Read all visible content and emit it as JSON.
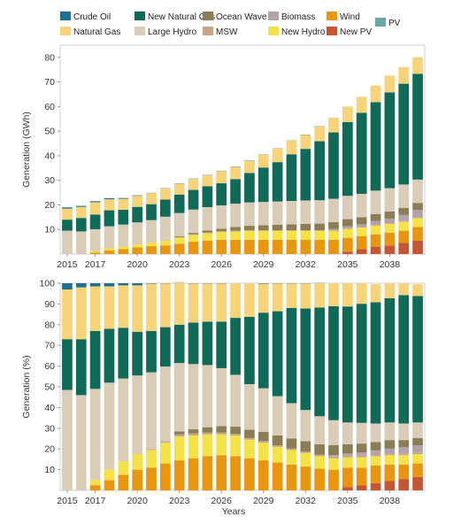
{
  "legend": [
    {
      "name": "Crude Oil",
      "color": "#1f6f93"
    },
    {
      "name": "New Natural Gas",
      "color": "#0f6b57"
    },
    {
      "name": "Ocean Wave",
      "color": "#8b7d56"
    },
    {
      "name": "Biomass",
      "color": "#b1a3ab"
    },
    {
      "name": "Wind",
      "color": "#e9950e"
    },
    {
      "name": "Natural Gas",
      "color": "#f7d37a"
    },
    {
      "name": "Large Hydro",
      "color": "#d9cdb8"
    },
    {
      "name": "MSW",
      "color": "#c8a585"
    },
    {
      "name": "New Hydro",
      "color": "#f4e246"
    },
    {
      "name": "New PV",
      "color": "#c85532"
    },
    {
      "name": "PV",
      "color": "#6aa9a6"
    }
  ],
  "chart_data": [
    {
      "type": "bar",
      "stacked": true,
      "ylabel": "Generation (GWh)",
      "xlabel": "",
      "ylim": [
        0,
        85
      ],
      "yticks": [
        10,
        20,
        30,
        40,
        50,
        60,
        70,
        80
      ],
      "categories": [
        "2015",
        "2016",
        "2017",
        "2018",
        "2019",
        "2020",
        "2021",
        "2022",
        "2023",
        "2024",
        "2025",
        "2026",
        "2027",
        "2028",
        "2029",
        "2030",
        "2031",
        "2032",
        "2033",
        "2034",
        "2035",
        "2036",
        "2037",
        "2038",
        "2039",
        "2040"
      ],
      "xticklabels": [
        "2015",
        "2017",
        "2020",
        "2023",
        "2026",
        "2029",
        "2032",
        "2035",
        "2038"
      ],
      "series": [
        {
          "name": "New PV",
          "color": "#c85532",
          "values": [
            0,
            0,
            0,
            0,
            0,
            0,
            0,
            0,
            0,
            0,
            0,
            0,
            0,
            0,
            0,
            0,
            0,
            0,
            0,
            0,
            1,
            2,
            3,
            3.5,
            4.5,
            5.5
          ]
        },
        {
          "name": "Wind",
          "color": "#e9950e",
          "values": [
            0,
            0,
            0.6,
            1.5,
            2,
            2.7,
            3.2,
            3.5,
            4.2,
            5,
            5.5,
            5.8,
            5.8,
            5.8,
            5.8,
            5.8,
            5.8,
            5.8,
            5.8,
            5.8,
            5.6,
            5.2,
            5,
            5.2,
            5,
            5.5
          ]
        },
        {
          "name": "New Hydro",
          "color": "#f4e246",
          "values": [
            0,
            0,
            0.5,
            0.8,
            1,
            1.2,
            1.5,
            2,
            2.5,
            2.8,
            3,
            3.2,
            3.4,
            3.6,
            3.6,
            3.6,
            3.6,
            3.6,
            3.6,
            3.6,
            3.6,
            3.6,
            3.6,
            3.6,
            3.6,
            3.6
          ]
        },
        {
          "name": "MSW",
          "color": "#c8a585",
          "values": [
            0,
            0,
            0,
            0,
            0,
            0,
            0.1,
            0.2,
            0.2,
            0.3,
            0.3,
            0.3,
            0.3,
            0.3,
            0.3,
            0.3,
            0.3,
            0.3,
            0.3,
            0.3,
            0.3,
            0.3,
            0.3,
            0.3,
            0.3,
            0.3
          ]
        },
        {
          "name": "Biomass",
          "color": "#b1a3ab",
          "values": [
            0,
            0,
            0,
            0,
            0,
            0,
            0,
            0,
            0,
            0,
            0,
            0,
            0,
            0,
            0,
            0,
            0,
            0,
            0,
            0.5,
            0.8,
            1,
            1.5,
            1.8,
            2.5,
            3
          ]
        },
        {
          "name": "Ocean Wave",
          "color": "#8b7d56",
          "values": [
            0,
            0,
            0,
            0,
            0,
            0,
            0,
            0,
            0.3,
            0.5,
            0.8,
            1,
            1.5,
            1.8,
            2,
            2.2,
            2.4,
            2.6,
            2.7,
            2.8,
            2.9,
            2.9,
            2.9,
            2.9,
            2.9,
            2.9
          ]
        },
        {
          "name": "Large Hydro",
          "color": "#d9cdb8",
          "values": [
            9.5,
            9.2,
            9,
            9,
            9,
            9,
            9,
            9.5,
            9.5,
            9.5,
            9.5,
            9.5,
            9.5,
            9.5,
            9.5,
            9.5,
            9.5,
            9.5,
            9.5,
            9.5,
            9.5,
            9.5,
            9.5,
            9.5,
            9.5,
            9.5
          ]
        },
        {
          "name": "New Natural Gas",
          "color": "#0f6b57",
          "values": [
            4.5,
            5.5,
            6,
            6.5,
            6,
            6.3,
            6.5,
            7,
            7.5,
            8,
            8.5,
            9,
            10,
            12,
            14,
            16,
            19,
            21,
            24,
            27,
            30,
            33,
            36,
            39,
            41,
            43
          ]
        },
        {
          "name": "Natural Gas",
          "color": "#f7d37a",
          "values": [
            4.5,
            4.5,
            5,
            4.5,
            4.5,
            4.5,
            4.5,
            4.5,
            4.5,
            4.5,
            4.5,
            5,
            5,
            5,
            5.2,
            5.5,
            5.5,
            5.7,
            6,
            6,
            6.3,
            6.5,
            6.8,
            6.8,
            6.8,
            6.8
          ]
        },
        {
          "name": "Crude Oil",
          "color": "#1f6f93",
          "values": [
            0.5,
            0.4,
            0.4,
            0.4,
            0.3,
            0.2,
            0.1,
            0.1,
            0.1,
            0.1,
            0.1,
            0.1,
            0.1,
            0.1,
            0.1,
            0.1,
            0.1,
            0.1,
            0.1,
            0,
            0,
            0,
            0,
            0,
            0,
            0
          ]
        }
      ]
    },
    {
      "type": "bar",
      "stacked": true,
      "ylabel": "Generation (%)",
      "xlabel": "Years",
      "ylim": [
        0,
        100
      ],
      "yticks": [
        10,
        20,
        30,
        40,
        50,
        60,
        70,
        80,
        90,
        100
      ],
      "categories": [
        "2015",
        "2016",
        "2017",
        "2018",
        "2019",
        "2020",
        "2021",
        "2022",
        "2023",
        "2024",
        "2025",
        "2026",
        "2027",
        "2028",
        "2029",
        "2030",
        "2031",
        "2032",
        "2033",
        "2034",
        "2035",
        "2036",
        "2037",
        "2038",
        "2039",
        "2040"
      ],
      "xticklabels": [
        "2015",
        "2017",
        "2020",
        "2023",
        "2026",
        "2029",
        "2032",
        "2035",
        "2038"
      ],
      "series": [
        {
          "name": "New PV",
          "color": "#c85532",
          "values": [
            0,
            0,
            0,
            0,
            0,
            0,
            0,
            0,
            0,
            0,
            0,
            0,
            0,
            0,
            0,
            0,
            0,
            0,
            0,
            0,
            1.5,
            2.5,
            3.5,
            4.5,
            5.5,
            6.5
          ]
        },
        {
          "name": "Wind",
          "color": "#e9950e",
          "values": [
            0,
            0,
            2.5,
            5,
            7.5,
            10,
            11,
            13,
            14.5,
            15.5,
            16.5,
            17,
            16.5,
            15.5,
            14.5,
            13.5,
            12.5,
            11.5,
            10.5,
            10,
            9.5,
            8.5,
            8.5,
            8,
            7,
            6.5
          ]
        },
        {
          "name": "New Hydro",
          "color": "#f4e246",
          "values": [
            0,
            0,
            2.5,
            5,
            6.5,
            7.5,
            8.5,
            10,
            11.5,
            11,
            10.5,
            10,
            10,
            9,
            8.5,
            7.5,
            7,
            6.5,
            6,
            5.5,
            5,
            5,
            4.5,
            4.5,
            4.5,
            4.5
          ]
        },
        {
          "name": "MSW",
          "color": "#c8a585",
          "values": [
            0,
            0,
            0,
            0,
            0,
            0,
            0.5,
            0.8,
            1,
            1,
            1,
            1,
            0.8,
            0.8,
            0.8,
            0.8,
            0.8,
            0.8,
            0.8,
            0.8,
            0.8,
            0.8,
            0.8,
            0.8,
            0.8,
            0.8
          ]
        },
        {
          "name": "Biomass",
          "color": "#b1a3ab",
          "values": [
            0,
            0,
            0,
            0,
            0,
            0,
            0,
            0,
            0,
            0,
            0,
            0,
            0,
            0,
            0,
            0,
            0,
            0,
            0,
            0.8,
            1,
            1.5,
            2,
            2.5,
            3,
            3.5
          ]
        },
        {
          "name": "Ocean Wave",
          "color": "#8b7d56",
          "values": [
            0,
            0,
            0,
            0,
            0,
            0,
            0,
            0,
            1.5,
            2,
            2.5,
            3,
            3.5,
            4,
            4.5,
            4.7,
            4.8,
            5,
            5,
            4.8,
            4.5,
            4.3,
            4,
            4,
            3.5,
            3.5
          ]
        },
        {
          "name": "Large Hydro",
          "color": "#d9cdb8",
          "values": [
            48.5,
            46,
            44,
            42,
            40,
            38,
            37,
            36,
            33,
            31.5,
            30,
            28,
            25,
            22,
            21,
            19,
            17,
            15,
            13.5,
            12,
            10.5,
            10,
            9,
            8.5,
            8,
            7.5
          ]
        },
        {
          "name": "New Natural Gas",
          "color": "#0f6b57",
          "values": [
            24.5,
            27,
            28,
            26,
            24.5,
            21,
            20,
            19,
            18.5,
            20,
            21,
            22.5,
            27.5,
            32.5,
            36.5,
            41,
            46,
            49,
            52.5,
            55,
            56,
            57.5,
            58.5,
            60,
            62,
            61
          ]
        },
        {
          "name": "Natural Gas",
          "color": "#f7d37a",
          "values": [
            24,
            25,
            21.5,
            20.5,
            20.5,
            22.5,
            22.8,
            21.1,
            20.4,
            18.9,
            18.4,
            18.4,
            16.7,
            16.1,
            14,
            13.4,
            11.8,
            12.1,
            11.7,
            11.1,
            11.2,
            9.9,
            8.7,
            7.2,
            5.7,
            5.7
          ]
        },
        {
          "name": "Crude Oil",
          "color": "#1f6f93",
          "values": [
            3,
            2,
            1.5,
            1.5,
            1,
            1,
            0.2,
            0.1,
            0.1,
            0.1,
            0.1,
            0.1,
            0,
            0,
            0.2,
            0.1,
            0.1,
            0.1,
            0.1,
            0,
            0,
            0,
            0,
            0,
            0,
            0
          ]
        }
      ]
    }
  ]
}
